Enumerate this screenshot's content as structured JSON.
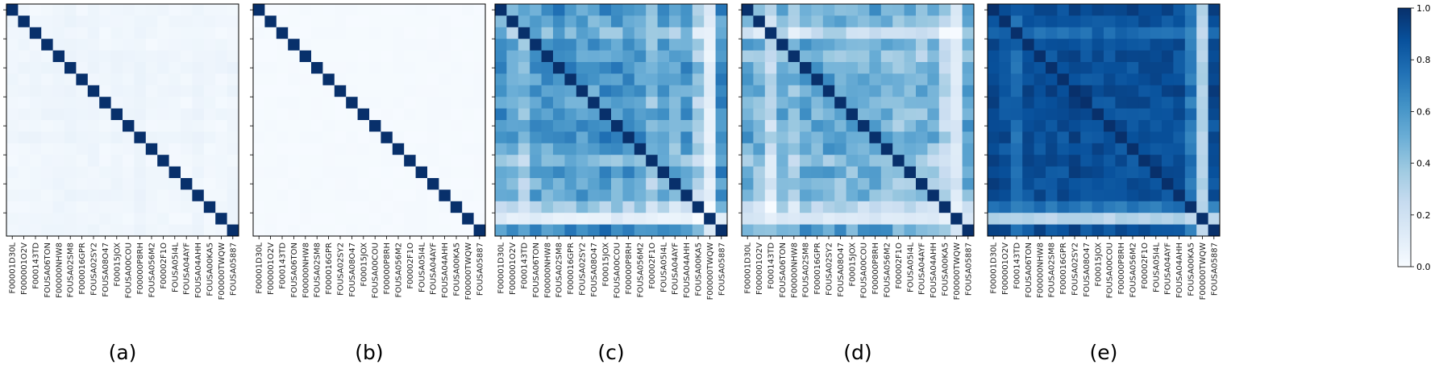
{
  "chart_data": {
    "type": "heatmap",
    "labels": [
      "F00001D30L",
      "F000001O2V",
      "F000143TD",
      "FOUSA06TON",
      "F00000NHW8",
      "FOUSA02SM8",
      "F000016GPR",
      "FOUSA02SY2",
      "FOUSA08O47",
      "F00015JOX",
      "FOUSA00COU",
      "F00000P8RH",
      "FOUSA056M2",
      "F00002F1O",
      "FOUSA05I4L",
      "FOUSA04AYF",
      "FOUSA04AHH",
      "FOUSA00KA5",
      "F00000TWQW",
      "FOUSA05887"
    ],
    "colorbar": {
      "min": 0.0,
      "max": 1.0,
      "ticks": [
        "0.0",
        "0.2",
        "0.4",
        "0.6",
        "0.8",
        "1.0"
      ],
      "colormap": "Blues"
    },
    "colors": {
      "low": "#f7fbff",
      "high": "#08306b"
    },
    "panels": [
      {
        "caption": "(a)",
        "base": 0.03,
        "rowEffect": [
          0.0,
          0.01,
          0.0,
          0.0,
          0.02,
          0.03,
          0.01,
          0.02,
          0.0,
          0.03,
          0.0,
          0.03,
          0.0,
          0.0,
          0.0,
          0.0,
          0.02,
          0.0,
          0.0,
          0.02
        ],
        "noise": 0.015,
        "diag": 1.0
      },
      {
        "caption": "(b)",
        "base": 0.01,
        "rowEffect": [
          0.0,
          0.0,
          0.0,
          0.0,
          0.0,
          0.0,
          0.0,
          0.0,
          0.0,
          0.0,
          0.0,
          0.0,
          0.0,
          0.0,
          0.0,
          0.0,
          0.0,
          0.0,
          0.0,
          0.0
        ],
        "noise": 0.005,
        "diag": 1.0
      },
      {
        "caption": "(c)",
        "base": 0.55,
        "rowEffect": [
          0.05,
          -0.05,
          -0.25,
          0.05,
          0.0,
          0.15,
          0.05,
          0.05,
          0.0,
          0.1,
          0.05,
          0.1,
          0.0,
          -0.25,
          0.0,
          -0.15,
          -0.05,
          -0.45,
          -0.5,
          0.15
        ],
        "noise": 0.12,
        "diag": 1.0,
        "special": {
          "lowCols": [
            18
          ],
          "lowVal": 0.1
        }
      },
      {
        "caption": "(d)",
        "base": 0.5,
        "rowEffect": [
          0.05,
          -0.05,
          -0.5,
          0.0,
          -0.15,
          0.05,
          0.05,
          0.05,
          0.0,
          0.0,
          0.0,
          0.05,
          0.0,
          -0.2,
          -0.05,
          -0.1,
          -0.1,
          -0.45,
          -0.5,
          0.1
        ],
        "noise": 0.12,
        "diag": 1.0,
        "special": {
          "lowCols": [
            18
          ],
          "lowVal": 0.15
        }
      },
      {
        "caption": "(e)",
        "base": 0.88,
        "rowEffect": [
          0.05,
          0.0,
          -0.2,
          0.0,
          0.0,
          0.0,
          0.0,
          0.05,
          0.0,
          0.0,
          0.0,
          0.0,
          0.0,
          0.0,
          0.0,
          0.0,
          0.0,
          -0.3,
          -0.85,
          0.0
        ],
        "noise": 0.06,
        "diag": 1.0,
        "special": {
          "lowCols": [
            18
          ],
          "lowVal": 0.3
        }
      }
    ]
  }
}
